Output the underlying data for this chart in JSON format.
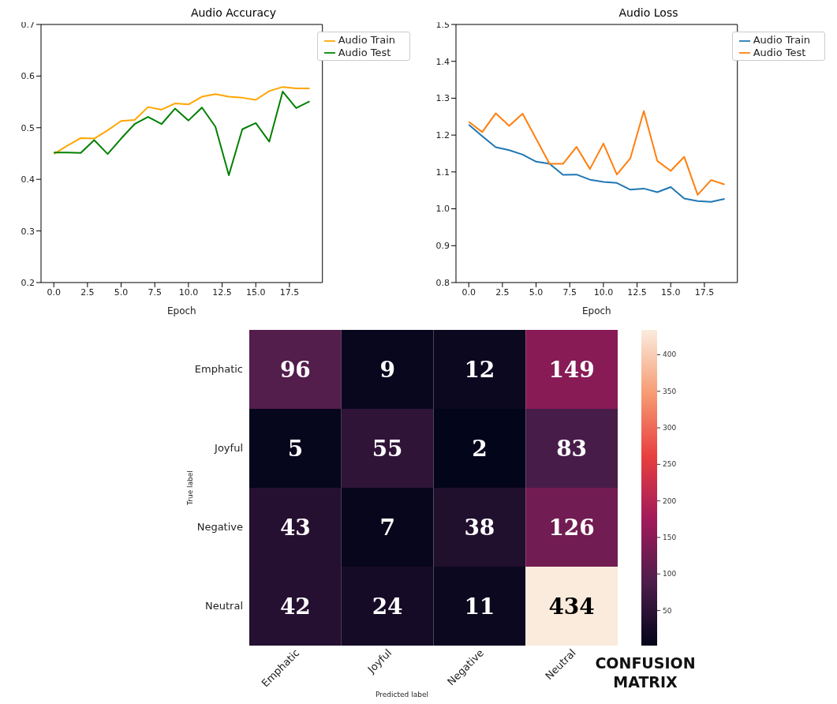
{
  "chart_data": [
    {
      "type": "line",
      "title": "Audio Accuracy",
      "xlabel": "Epoch",
      "x": [
        0,
        1,
        2,
        3,
        4,
        5,
        6,
        7,
        8,
        9,
        10,
        11,
        12,
        13,
        14,
        15,
        16,
        17,
        18,
        19
      ],
      "series": [
        {
          "name": "Audio Train",
          "color": "#ffa500",
          "values": [
            0.449,
            0.465,
            0.48,
            0.479,
            0.495,
            0.513,
            0.515,
            0.54,
            0.535,
            0.547,
            0.545,
            0.56,
            0.565,
            0.56,
            0.558,
            0.554,
            0.571,
            0.579,
            0.576,
            0.576
          ]
        },
        {
          "name": "Audio Test",
          "color": "#008000",
          "values": [
            0.452,
            0.452,
            0.451,
            0.476,
            0.449,
            0.479,
            0.507,
            0.521,
            0.507,
            0.537,
            0.514,
            0.539,
            0.502,
            0.408,
            0.497,
            0.509,
            0.473,
            0.57,
            0.538,
            0.551
          ]
        }
      ],
      "xlim": [
        -0.95,
        19.95
      ],
      "xticks": [
        {
          "value": 0,
          "label": "0.0"
        },
        2.5,
        {
          "value": 5,
          "label": "5.0"
        },
        7.5,
        {
          "value": 10,
          "label": "10.0"
        },
        12.5,
        {
          "value": 15,
          "label": "15.0"
        },
        17.5
      ],
      "ylim": [
        0.2,
        0.7
      ],
      "yticks": [
        0.2,
        0.3,
        0.4,
        0.5,
        0.6,
        0.7
      ],
      "legend": "top right"
    },
    {
      "type": "line",
      "title": "Audio Loss",
      "xlabel": "Epoch",
      "x": [
        0,
        1,
        2,
        3,
        4,
        5,
        6,
        7,
        8,
        9,
        10,
        11,
        12,
        13,
        14,
        15,
        16,
        17,
        18,
        19
      ],
      "series": [
        {
          "name": "Audio Train",
          "color": "#1f77b4",
          "values": [
            1.228,
            1.197,
            1.167,
            1.159,
            1.147,
            1.128,
            1.122,
            1.092,
            1.093,
            1.079,
            1.073,
            1.07,
            1.052,
            1.055,
            1.045,
            1.059,
            1.028,
            1.021,
            1.019,
            1.027
          ]
        },
        {
          "name": "Audio Test",
          "color": "#ff7f0e",
          "values": [
            1.236,
            1.208,
            1.259,
            1.225,
            1.258,
            1.19,
            1.122,
            1.122,
            1.168,
            1.108,
            1.177,
            1.093,
            1.137,
            1.265,
            1.13,
            1.103,
            1.141,
            1.038,
            1.078,
            1.066
          ]
        }
      ],
      "xlim": [
        -0.95,
        19.95
      ],
      "xticks": [
        {
          "value": 0,
          "label": "0.0"
        },
        2.5,
        {
          "value": 5,
          "label": "5.0"
        },
        7.5,
        {
          "value": 10,
          "label": "10.0"
        },
        12.5,
        {
          "value": 15,
          "label": "15.0"
        },
        17.5
      ],
      "ylim": [
        0.8,
        1.5
      ],
      "yticks": [
        0.8,
        0.9,
        {
          "value": 1,
          "label": "1.0"
        },
        1.1,
        1.2,
        1.3,
        1.4,
        1.5
      ],
      "legend": "top right"
    },
    {
      "type": "heatmap",
      "xlabel": "Predicted label",
      "ylabel": "True label",
      "categories": [
        "Emphatic",
        "Joyful",
        "Negative",
        "Neutral"
      ],
      "y_categories": [
        "Emphatic",
        "Joyful",
        "Negative",
        "Neutral"
      ],
      "cells": [
        [
          96,
          9,
          12,
          149
        ],
        [
          5,
          55,
          2,
          83
        ],
        [
          43,
          7,
          38,
          126
        ],
        [
          42,
          24,
          11,
          434
        ]
      ],
      "data_labels": true,
      "clim": [
        2,
        434
      ],
      "cticks": [
        50,
        100,
        150,
        200,
        250,
        300,
        350,
        400
      ],
      "annotations": [
        "CONFUSION MATRIX"
      ]
    }
  ]
}
